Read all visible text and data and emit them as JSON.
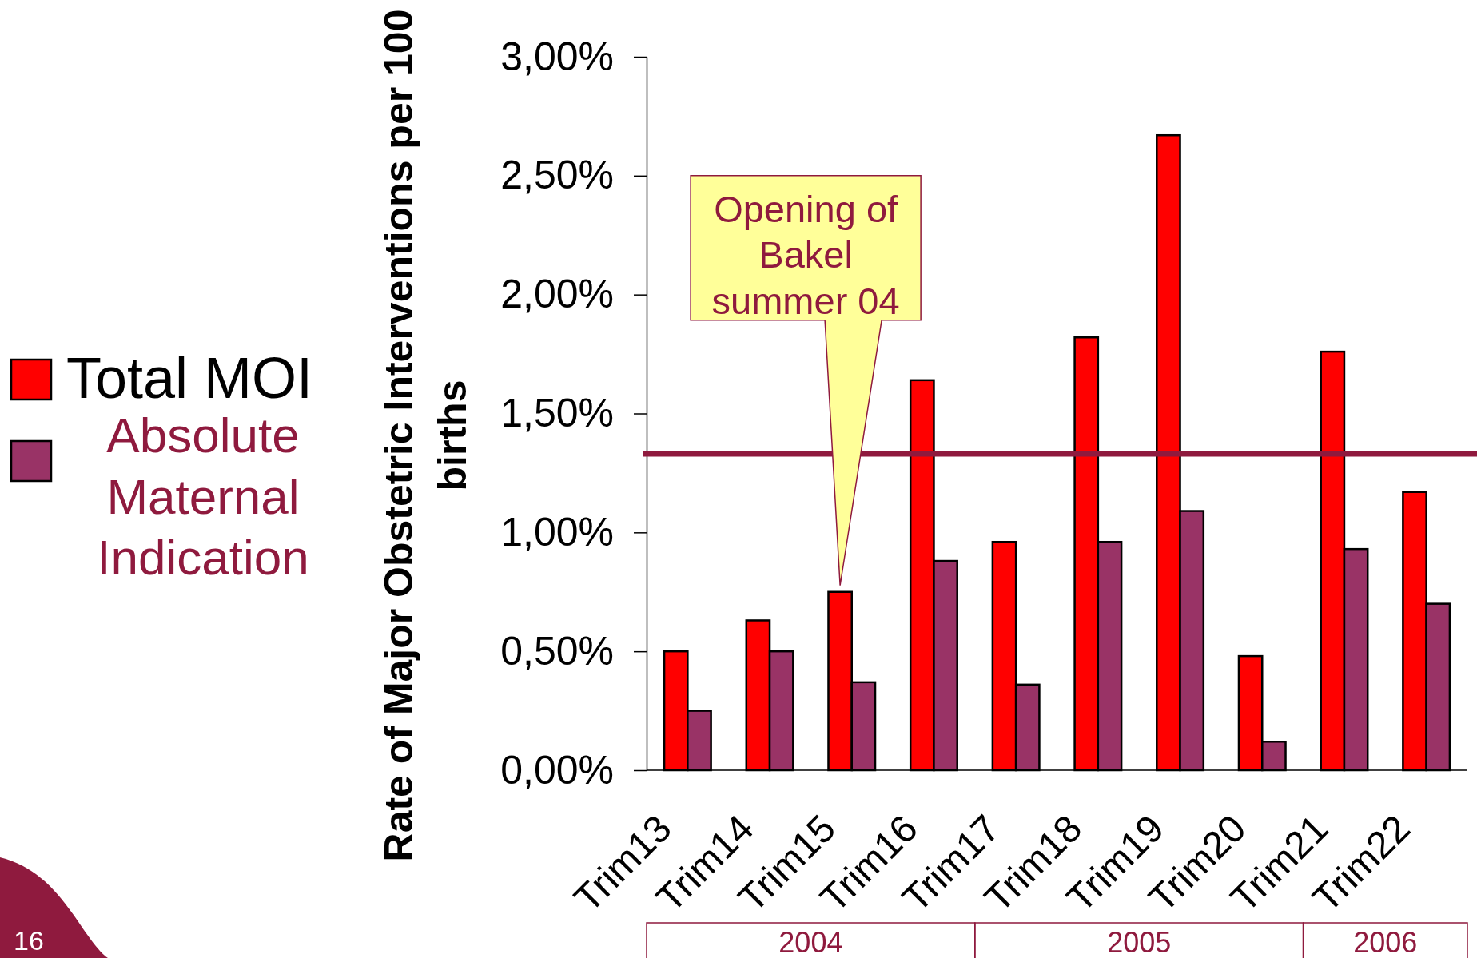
{
  "chart_data": {
    "type": "bar",
    "ylabel": "Rate of Major Obstetric Interventions per 100 births",
    "categories": [
      "Trim13",
      "Trim14",
      "Trim15",
      "Trim16",
      "Trim17",
      "Trim18",
      "Trim19",
      "Trim20",
      "Trim21",
      "Trim22"
    ],
    "series": [
      {
        "name": "Total MOI",
        "color": "#ff0000",
        "values": [
          0.5,
          0.63,
          0.75,
          1.64,
          0.96,
          1.82,
          2.67,
          0.48,
          1.76,
          1.17
        ]
      },
      {
        "name": "Absolute Maternal Indication",
        "color": "#993366",
        "values": [
          0.25,
          0.5,
          0.37,
          0.88,
          0.36,
          0.96,
          1.09,
          0.12,
          0.93,
          0.7
        ]
      }
    ],
    "ylim": [
      0,
      3
    ],
    "yticks": [
      {
        "value": 0,
        "label": "0,00%"
      },
      {
        "value": 0.5,
        "label": "0,50%"
      },
      {
        "value": 1,
        "label": "1,00%"
      },
      {
        "value": 1.5,
        "label": "1,50%"
      },
      {
        "value": 2,
        "label": "2,00%"
      },
      {
        "value": 2.5,
        "label": "2,50%"
      },
      {
        "value": 3,
        "label": "3,00%"
      }
    ],
    "ref_lines": [
      {
        "axis": "y",
        "value": 1.33,
        "color": "#8f1a3e"
      }
    ],
    "annotations": [
      "Opening of Bakel summer 04",
      "2004",
      "2005",
      "2006",
      "16"
    ],
    "legend": "left"
  }
}
